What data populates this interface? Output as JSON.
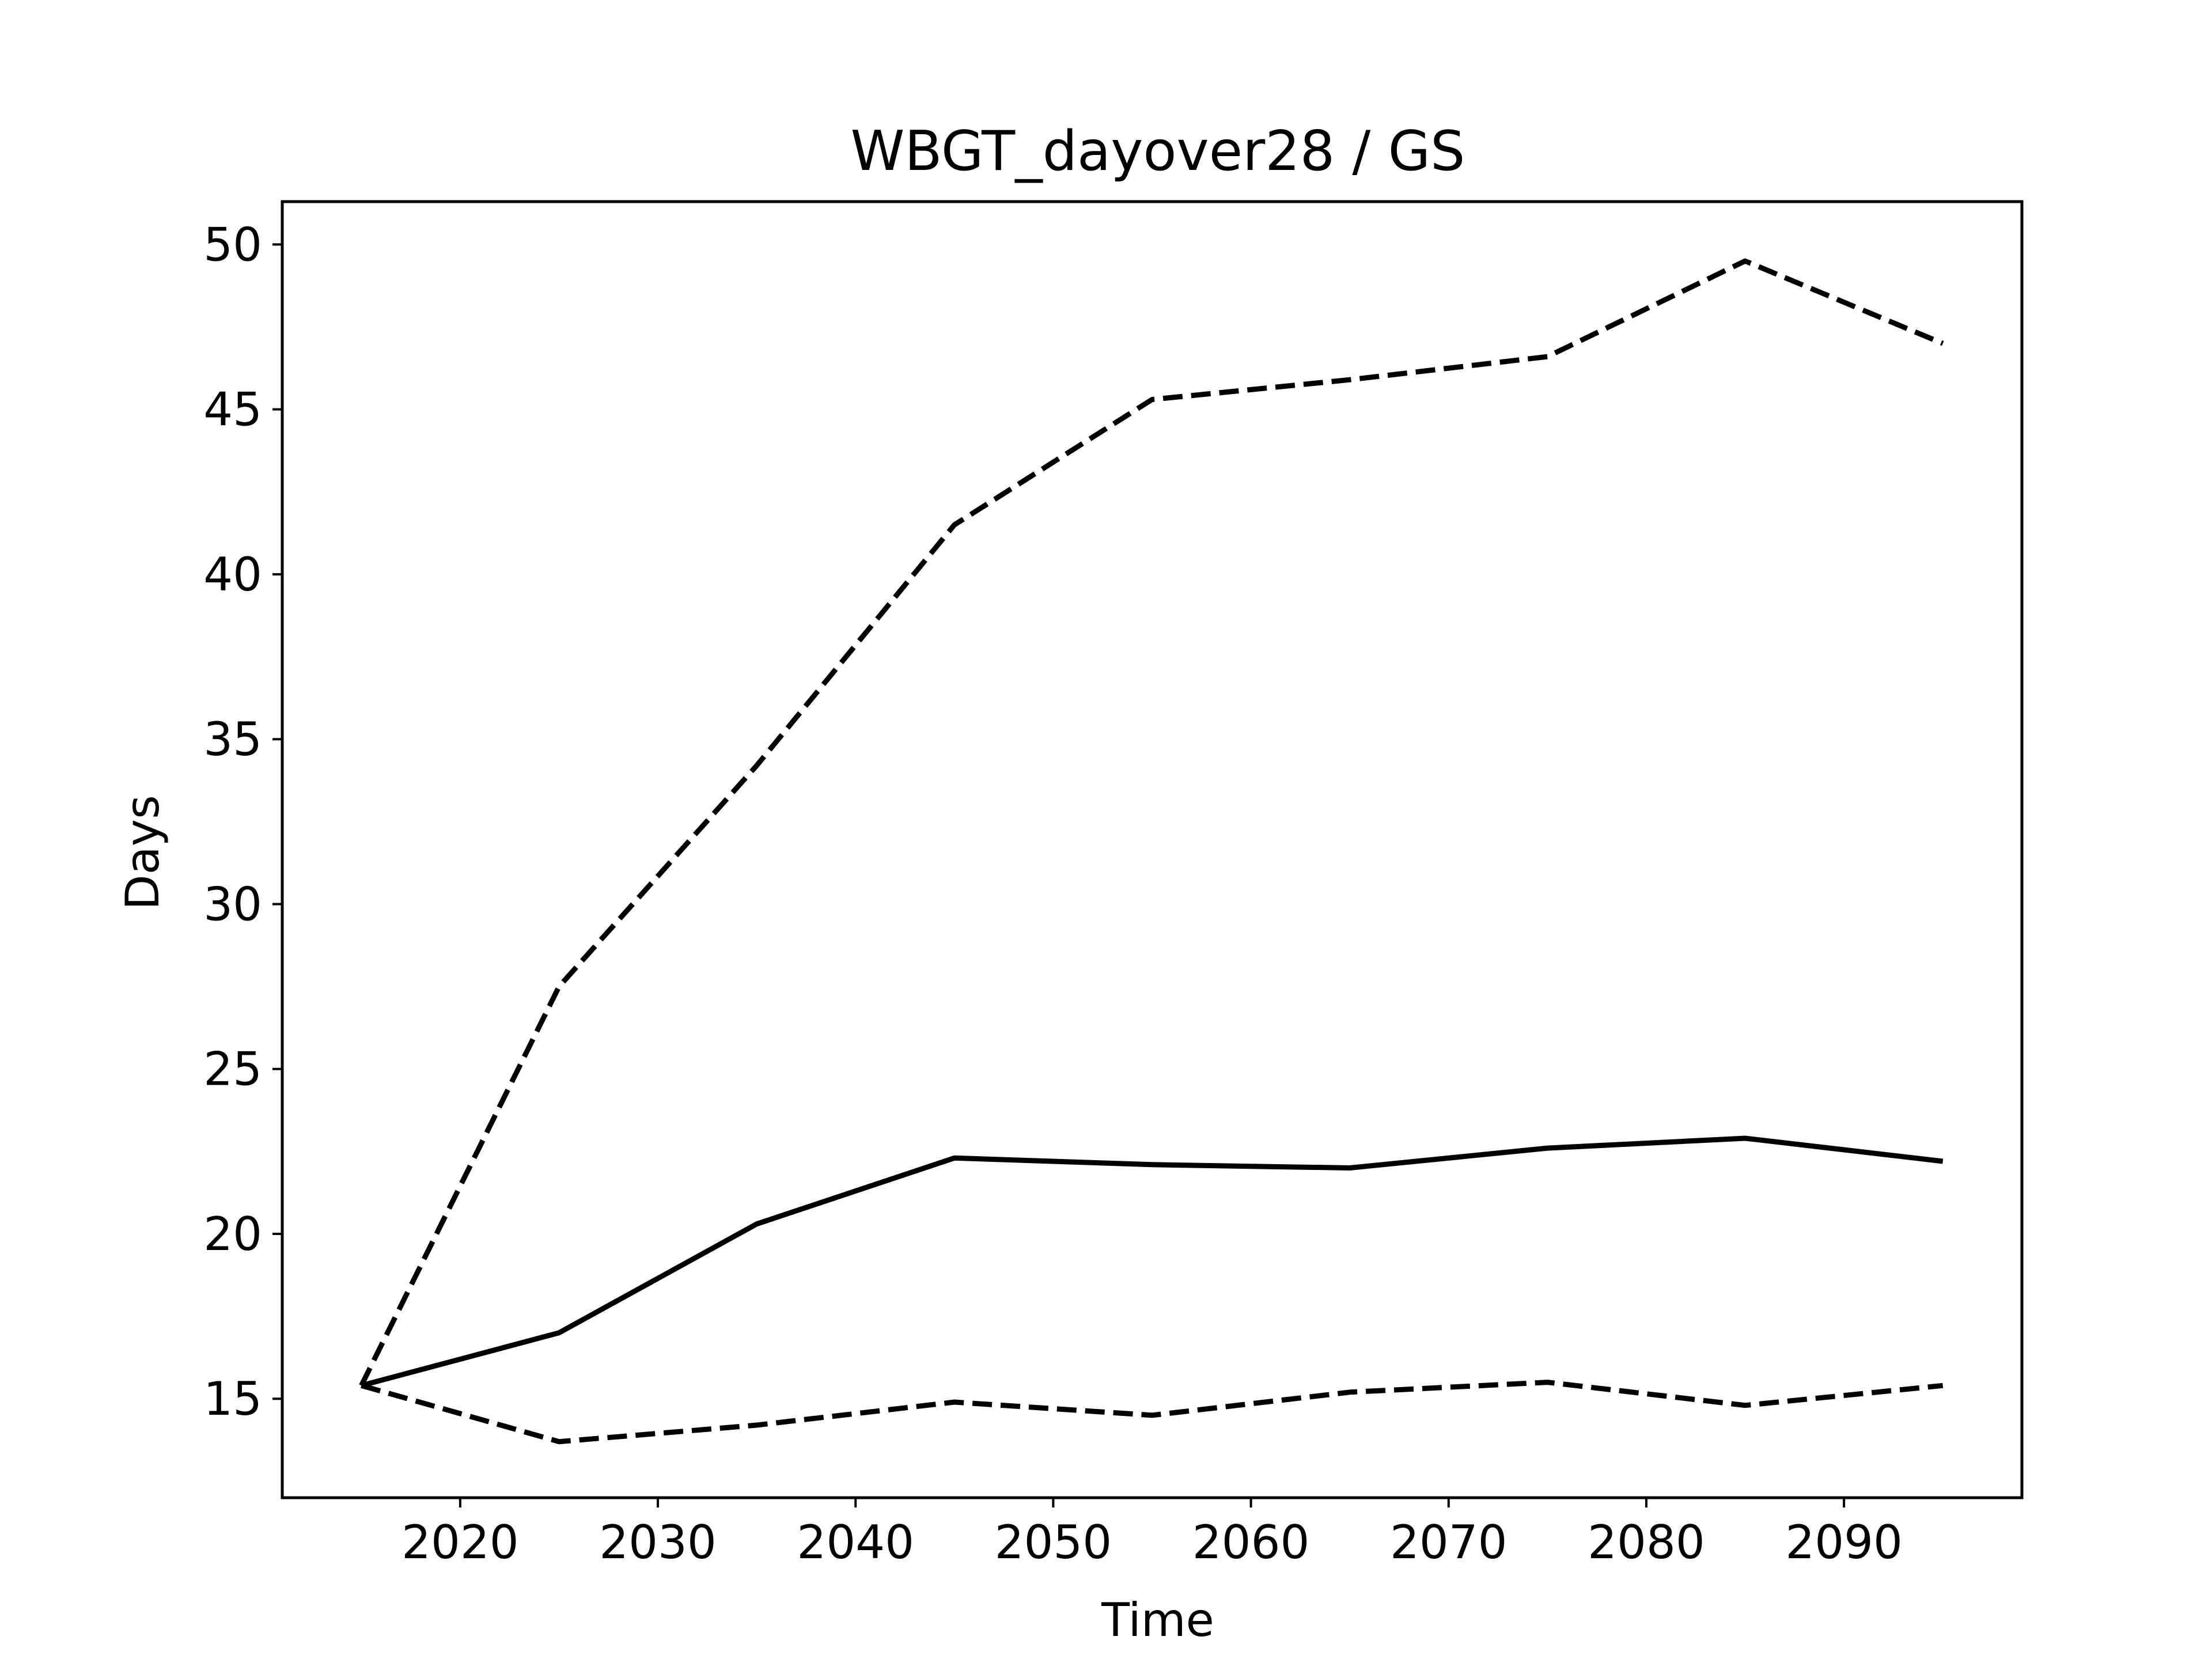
{
  "chart_data": {
    "type": "line",
    "title": "WBGT_dayover28 / GS",
    "xlabel": "Time",
    "ylabel": "Days",
    "xlim": [
      2011,
      2099
    ],
    "ylim": [
      12,
      51.3
    ],
    "xticks": [
      2020,
      2030,
      2040,
      2050,
      2060,
      2070,
      2080,
      2090
    ],
    "yticks": [
      15,
      20,
      25,
      30,
      35,
      40,
      45,
      50
    ],
    "grid": false,
    "legend": "none",
    "x": [
      2015,
      2025,
      2035,
      2045,
      2055,
      2065,
      2075,
      2085,
      2095
    ],
    "series": [
      {
        "style": "solid",
        "color": "#000000",
        "values": [
          15.4,
          17.0,
          20.3,
          22.3,
          22.1,
          22.0,
          22.6,
          22.9,
          22.2
        ]
      },
      {
        "style": "dashed",
        "color": "#000000",
        "values": [
          15.4,
          27.5,
          34.2,
          41.5,
          45.3,
          45.9,
          46.6,
          49.5,
          47.0
        ]
      },
      {
        "style": "dashed",
        "color": "#000000",
        "values": [
          15.4,
          13.7,
          14.2,
          14.9,
          14.5,
          15.2,
          15.5,
          14.8,
          15.4
        ]
      }
    ]
  }
}
